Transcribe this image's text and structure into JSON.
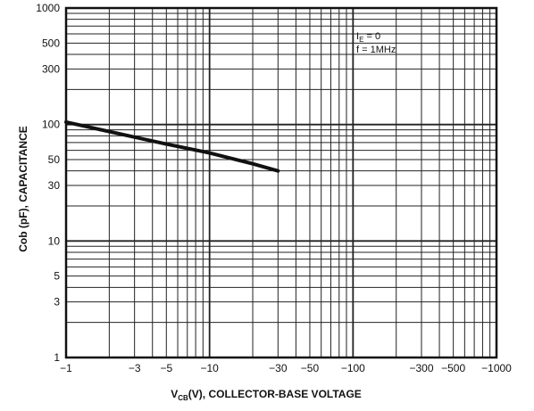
{
  "chart_data": {
    "type": "line",
    "xscale": "log",
    "yscale": "log",
    "xlim": [
      -1,
      -1000
    ],
    "ylim": [
      1,
      1000
    ],
    "grid": true,
    "xlabel_main": "V",
    "xlabel_sub": "CB",
    "xlabel_rest": "(V), COLLECTOR-BASE VOLTAGE",
    "ylabel": "Cob (pF), CAPACITANCE",
    "annotations": [
      "Iₑ = 0",
      "f = 1MHz"
    ],
    "annotation_lines": [
      {
        "main": "I",
        "sub": "E",
        "rest": " = 0"
      },
      {
        "main": "f = 1MHz",
        "sub": "",
        "rest": ""
      }
    ],
    "x_tick_labels": [
      "−1",
      "−3",
      "−5",
      "−10",
      "−30",
      "−50",
      "−100",
      "−300",
      "−500",
      "−1000"
    ],
    "x_ticks": [
      -1,
      -3,
      -5,
      -10,
      -30,
      -50,
      -100,
      -300,
      -500,
      -1000
    ],
    "y_tick_labels": [
      "1",
      "3",
      "5",
      "10",
      "30",
      "50",
      "100",
      "300",
      "500",
      "1000"
    ],
    "y_ticks": [
      1,
      3,
      5,
      10,
      30,
      50,
      100,
      300,
      500,
      1000
    ],
    "series": [
      {
        "x": [
          -1,
          -3,
          -5,
          -10,
          -20,
          -30
        ],
        "y": [
          105,
          78,
          68,
          57,
          46,
          40
        ]
      }
    ]
  }
}
